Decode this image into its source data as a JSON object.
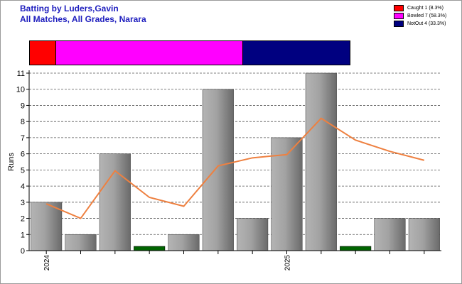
{
  "title_line1": "Batting by Luders,Gavin",
  "title_line2": "All Matches, All Grades, Narara",
  "legend": [
    {
      "label": "Caught 1 (8.3%)",
      "color": "#ff0000",
      "fraction": 0.083
    },
    {
      "label": "Bowled 7 (58.3%)",
      "color": "#ff00ff",
      "fraction": 0.583
    },
    {
      "label": "NotOut 4 (33.3%)",
      "color": "#000080",
      "fraction": 0.333
    }
  ],
  "chart_data": {
    "type": "bar",
    "ylabel": "Runs",
    "xlabel": "",
    "ylim": [
      0,
      11
    ],
    "yticks": [
      0,
      1,
      2,
      3,
      4,
      5,
      6,
      7,
      8,
      9,
      10,
      11
    ],
    "grid": true,
    "categories": [
      "2024",
      "",
      "",
      "",
      "",
      "",
      "",
      "2025",
      "",
      "",
      "",
      ""
    ],
    "values": [
      3,
      1,
      6,
      0,
      1,
      10,
      2,
      7,
      11,
      0,
      2,
      2
    ],
    "bar_status": [
      "normal",
      "normal",
      "normal",
      "duck",
      "normal",
      "normal",
      "normal",
      "normal",
      "normal",
      "duck",
      "normal",
      "normal"
    ],
    "series": [
      {
        "name": "Runs",
        "values": [
          3,
          1,
          6,
          0,
          1,
          10,
          2,
          7,
          11,
          0,
          2,
          2
        ]
      },
      {
        "name": "Average",
        "values": [
          2.9,
          2.0,
          4.95,
          3.3,
          2.75,
          5.25,
          5.75,
          5.95,
          8.2,
          6.85,
          6.15,
          5.6
        ]
      }
    ],
    "trend_color": "#ee8040",
    "bar_color": "#999999",
    "duck_color": "#006400"
  }
}
